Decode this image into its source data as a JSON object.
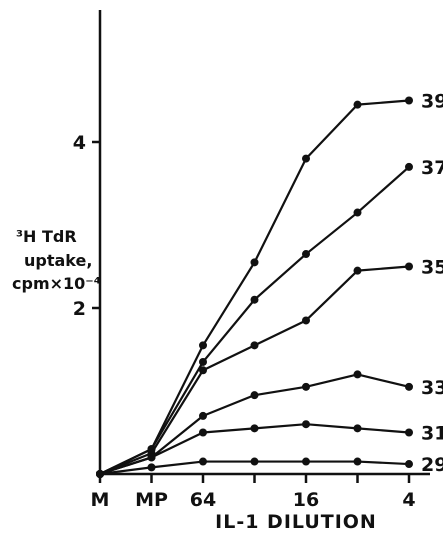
{
  "chart_data": {
    "type": "line",
    "x": [
      "M",
      "MP",
      "64",
      "",
      "16",
      "",
      "4"
    ],
    "xlabel": "IL-1 DILUTION",
    "ylabel_lines": [
      "³H TdR",
      "uptake,",
      "cpm×10⁻⁴"
    ],
    "ylim": [
      0,
      6
    ],
    "yticks": [
      2,
      4
    ],
    "grid": false,
    "series": [
      {
        "name": "39",
        "values": [
          0.0,
          0.3,
          1.55,
          2.55,
          3.8,
          4.45,
          4.5
        ]
      },
      {
        "name": "37",
        "values": [
          0.0,
          0.3,
          1.35,
          2.1,
          2.65,
          3.15,
          3.7
        ]
      },
      {
        "name": "35",
        "values": [
          0.0,
          0.25,
          1.25,
          1.55,
          1.85,
          2.45,
          2.5
        ]
      },
      {
        "name": "33",
        "values": [
          0.0,
          0.2,
          0.7,
          0.95,
          1.05,
          1.2,
          1.05
        ]
      },
      {
        "name": "31",
        "values": [
          0.0,
          0.2,
          0.5,
          0.55,
          0.6,
          0.55,
          0.5
        ]
      },
      {
        "name": "29",
        "values": [
          0.0,
          0.08,
          0.15,
          0.15,
          0.15,
          0.15,
          0.12
        ]
      }
    ]
  }
}
